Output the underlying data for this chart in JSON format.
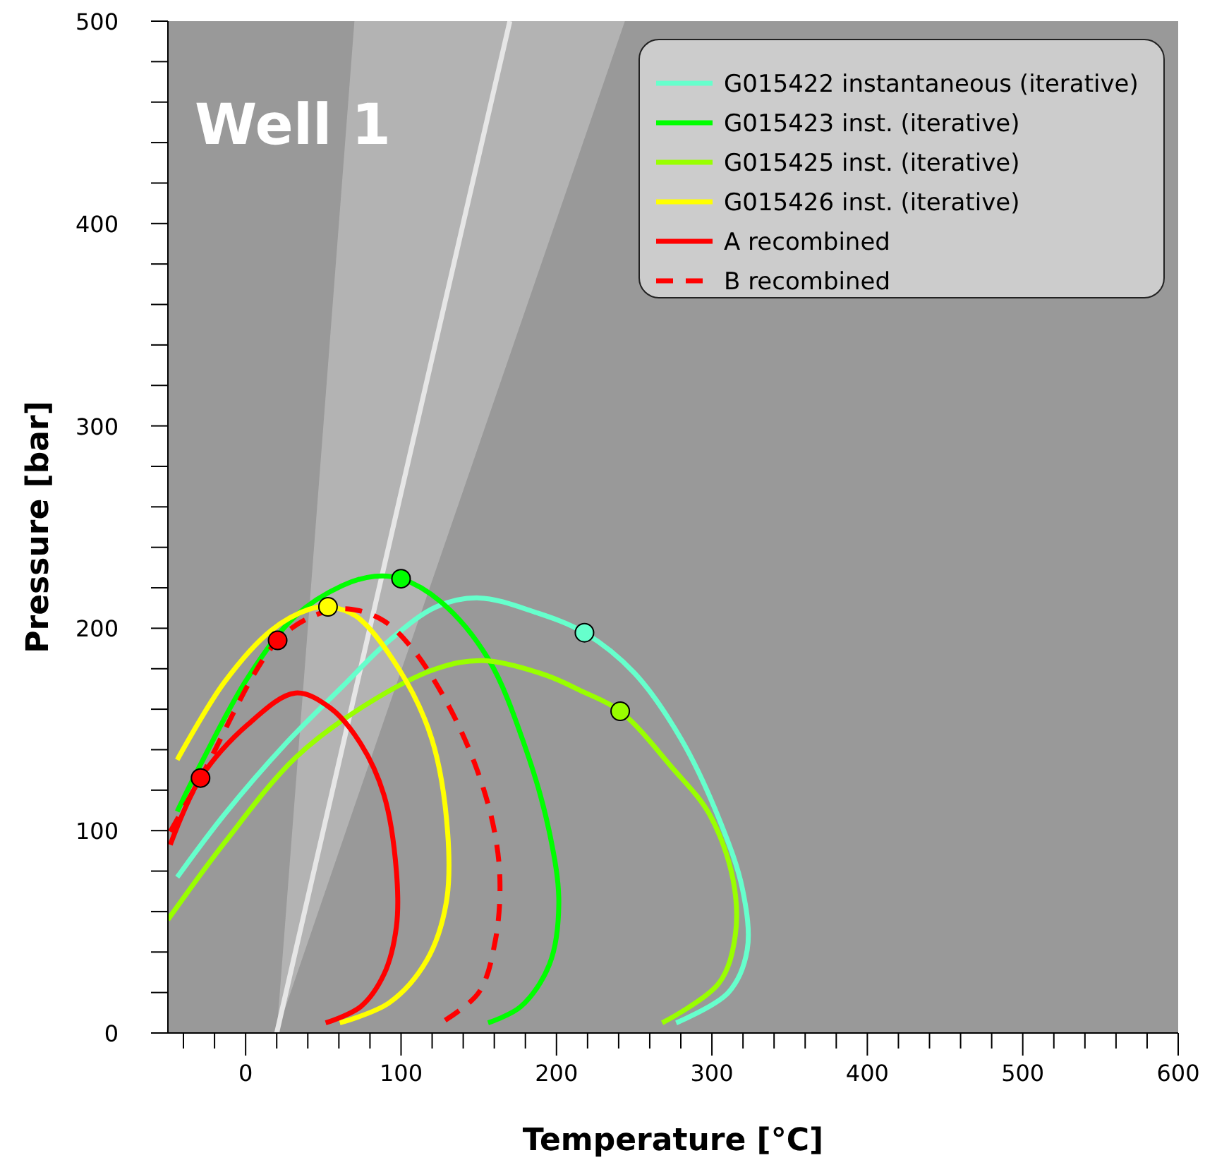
{
  "chart_data": {
    "type": "line",
    "title": "Well 1",
    "xlabel": "Temperature [°C]",
    "ylabel": "Pressure [bar]",
    "xlim": [
      -50,
      600
    ],
    "ylim": [
      0,
      500
    ],
    "xticks": [
      {
        "value": -40,
        "label": null
      },
      {
        "value": -20,
        "label": null
      },
      0,
      {
        "value": 20,
        "label": null
      },
      {
        "value": 40,
        "label": null
      },
      {
        "value": 60,
        "label": null
      },
      {
        "value": 80,
        "label": null
      },
      100,
      {
        "value": 120,
        "label": null
      },
      {
        "value": 140,
        "label": null
      },
      {
        "value": 160,
        "label": null
      },
      {
        "value": 180,
        "label": null
      },
      200,
      {
        "value": 220,
        "label": null
      },
      {
        "value": 240,
        "label": null
      },
      {
        "value": 260,
        "label": null
      },
      {
        "value": 280,
        "label": null
      },
      300,
      {
        "value": 320,
        "label": null
      },
      {
        "value": 340,
        "label": null
      },
      {
        "value": 360,
        "label": null
      },
      {
        "value": 380,
        "label": null
      },
      400,
      {
        "value": 420,
        "label": null
      },
      {
        "value": 440,
        "label": null
      },
      {
        "value": 460,
        "label": null
      },
      {
        "value": 480,
        "label": null
      },
      500,
      {
        "value": 520,
        "label": null
      },
      {
        "value": 540,
        "label": null
      },
      {
        "value": 560,
        "label": null
      },
      {
        "value": 580,
        "label": null
      },
      600
    ],
    "yticks": [
      0,
      {
        "value": 20,
        "label": null
      },
      {
        "value": 40,
        "label": null
      },
      {
        "value": 60,
        "label": null
      },
      {
        "value": 80,
        "label": null
      },
      100,
      {
        "value": 120,
        "label": null
      },
      {
        "value": 140,
        "label": null
      },
      {
        "value": 160,
        "label": null
      },
      {
        "value": 180,
        "label": null
      },
      200,
      {
        "value": 220,
        "label": null
      },
      {
        "value": 240,
        "label": null
      },
      {
        "value": 260,
        "label": null
      },
      {
        "value": 280,
        "label": null
      },
      300,
      {
        "value": 320,
        "label": null
      },
      {
        "value": 340,
        "label": null
      },
      {
        "value": 360,
        "label": null
      },
      {
        "value": 380,
        "label": null
      },
      400,
      {
        "value": 420,
        "label": null
      },
      {
        "value": 440,
        "label": null
      },
      {
        "value": 460,
        "label": null
      },
      {
        "value": 480,
        "label": null
      },
      500
    ],
    "grid": false,
    "legend": "top right",
    "marker": "none",
    "series": [
      {
        "color": "#e6e6e6",
        "x": [
          20,
          70,
          170,
          244
        ],
        "values": [
          0,
          167,
          500,
          null
        ],
        "lower": [
          0,
          112,
          335,
          500
        ],
        "upper": [
          0,
          500,
          500,
          500
        ]
      },
      {
        "type": "line",
        "name": "G015422 instantaneous (iterative)",
        "color": "#66ffcc",
        "x": [
          -44,
          -13.6,
          25.8,
          62,
          92.5,
          122.7,
          150,
          186,
          218,
          250,
          280,
          304.5,
          319.7,
          322.7,
          310.6,
          277
        ],
        "values": [
          77,
          108,
          143,
          171,
          194,
          210.6,
          215,
          208,
          197.8,
          178,
          145.5,
          106,
          71,
          41,
          20,
          5
        ]
      },
      {
        "type": "line",
        "name": "G015423 inst. (iterative)",
        "color": "#00ff00",
        "x": [
          -44,
          -29,
          1.5,
          32,
          62,
          83,
          100,
          125.7,
          156,
          180,
          195.5,
          201.5,
          195.5,
          177,
          156
        ],
        "values": [
          109.5,
          132.7,
          175.7,
          206,
          221,
          225.7,
          224.5,
          213,
          185,
          141,
          99,
          64,
          34,
          13,
          5
        ]
      },
      {
        "type": "line",
        "name": "G015425 inst. (iterative)",
        "color": "#99ff00",
        "x": [
          -50,
          -13.6,
          32,
          77,
          122.7,
          153,
          192.5,
          216.6,
          241,
          274,
          298.5,
          313.6,
          315,
          304.5,
          268
        ],
        "values": [
          56,
          94,
          136,
          162,
          180,
          184,
          177,
          168.8,
          159,
          131.5,
          108,
          75.8,
          48,
          24.6,
          5
        ]
      },
      {
        "type": "line",
        "name": "G015426 inst. (iterative)",
        "color": "#ffff00",
        "x": [
          -44,
          -13.6,
          16.6,
          41,
          53,
          71,
          98.5,
          119.7,
          130,
          129,
          116.6,
          92.5,
          60.6
        ],
        "values": [
          135,
          173.4,
          199,
          209.4,
          210.6,
          206,
          180,
          145.5,
          99,
          64,
          36,
          15,
          5
        ]
      },
      {
        "type": "line",
        "name": "A recombined",
        "color": "#ff0000",
        "line_style": "solid",
        "x": [
          -48.5,
          -29,
          1.5,
          32,
          54.5,
          74,
          89,
          97,
          97,
          89,
          74,
          51.5
        ],
        "values": [
          93,
          126,
          152.5,
          168,
          160.6,
          143,
          117.6,
          80,
          52.5,
          29,
          13,
          5
        ]
      },
      {
        "type": "line",
        "name": "B recombined",
        "color": "#ff0000",
        "line_style": "dashed",
        "x": [
          -48.5,
          -29,
          20.6,
          50,
          68,
          89,
          107.5,
          129,
          147,
          159,
          163.6,
          160.6,
          150,
          125.7
        ],
        "values": [
          99.5,
          126,
          194,
          208,
          209.4,
          203.6,
          189.7,
          164,
          134,
          103.7,
          75.8,
          45.5,
          20,
          5
        ]
      },
      {
        "type": "scatter",
        "marker": "circle",
        "x": [
          218,
          100,
          241,
          53,
          -29,
          20.6
        ],
        "values": [
          197.8,
          224.5,
          159,
          210.6,
          126,
          194
        ],
        "colors": [
          "#66ffcc",
          "#00ff00",
          "#99ff00",
          "#ffff00",
          "#ff0000",
          "#ff0000"
        ]
      }
    ]
  }
}
